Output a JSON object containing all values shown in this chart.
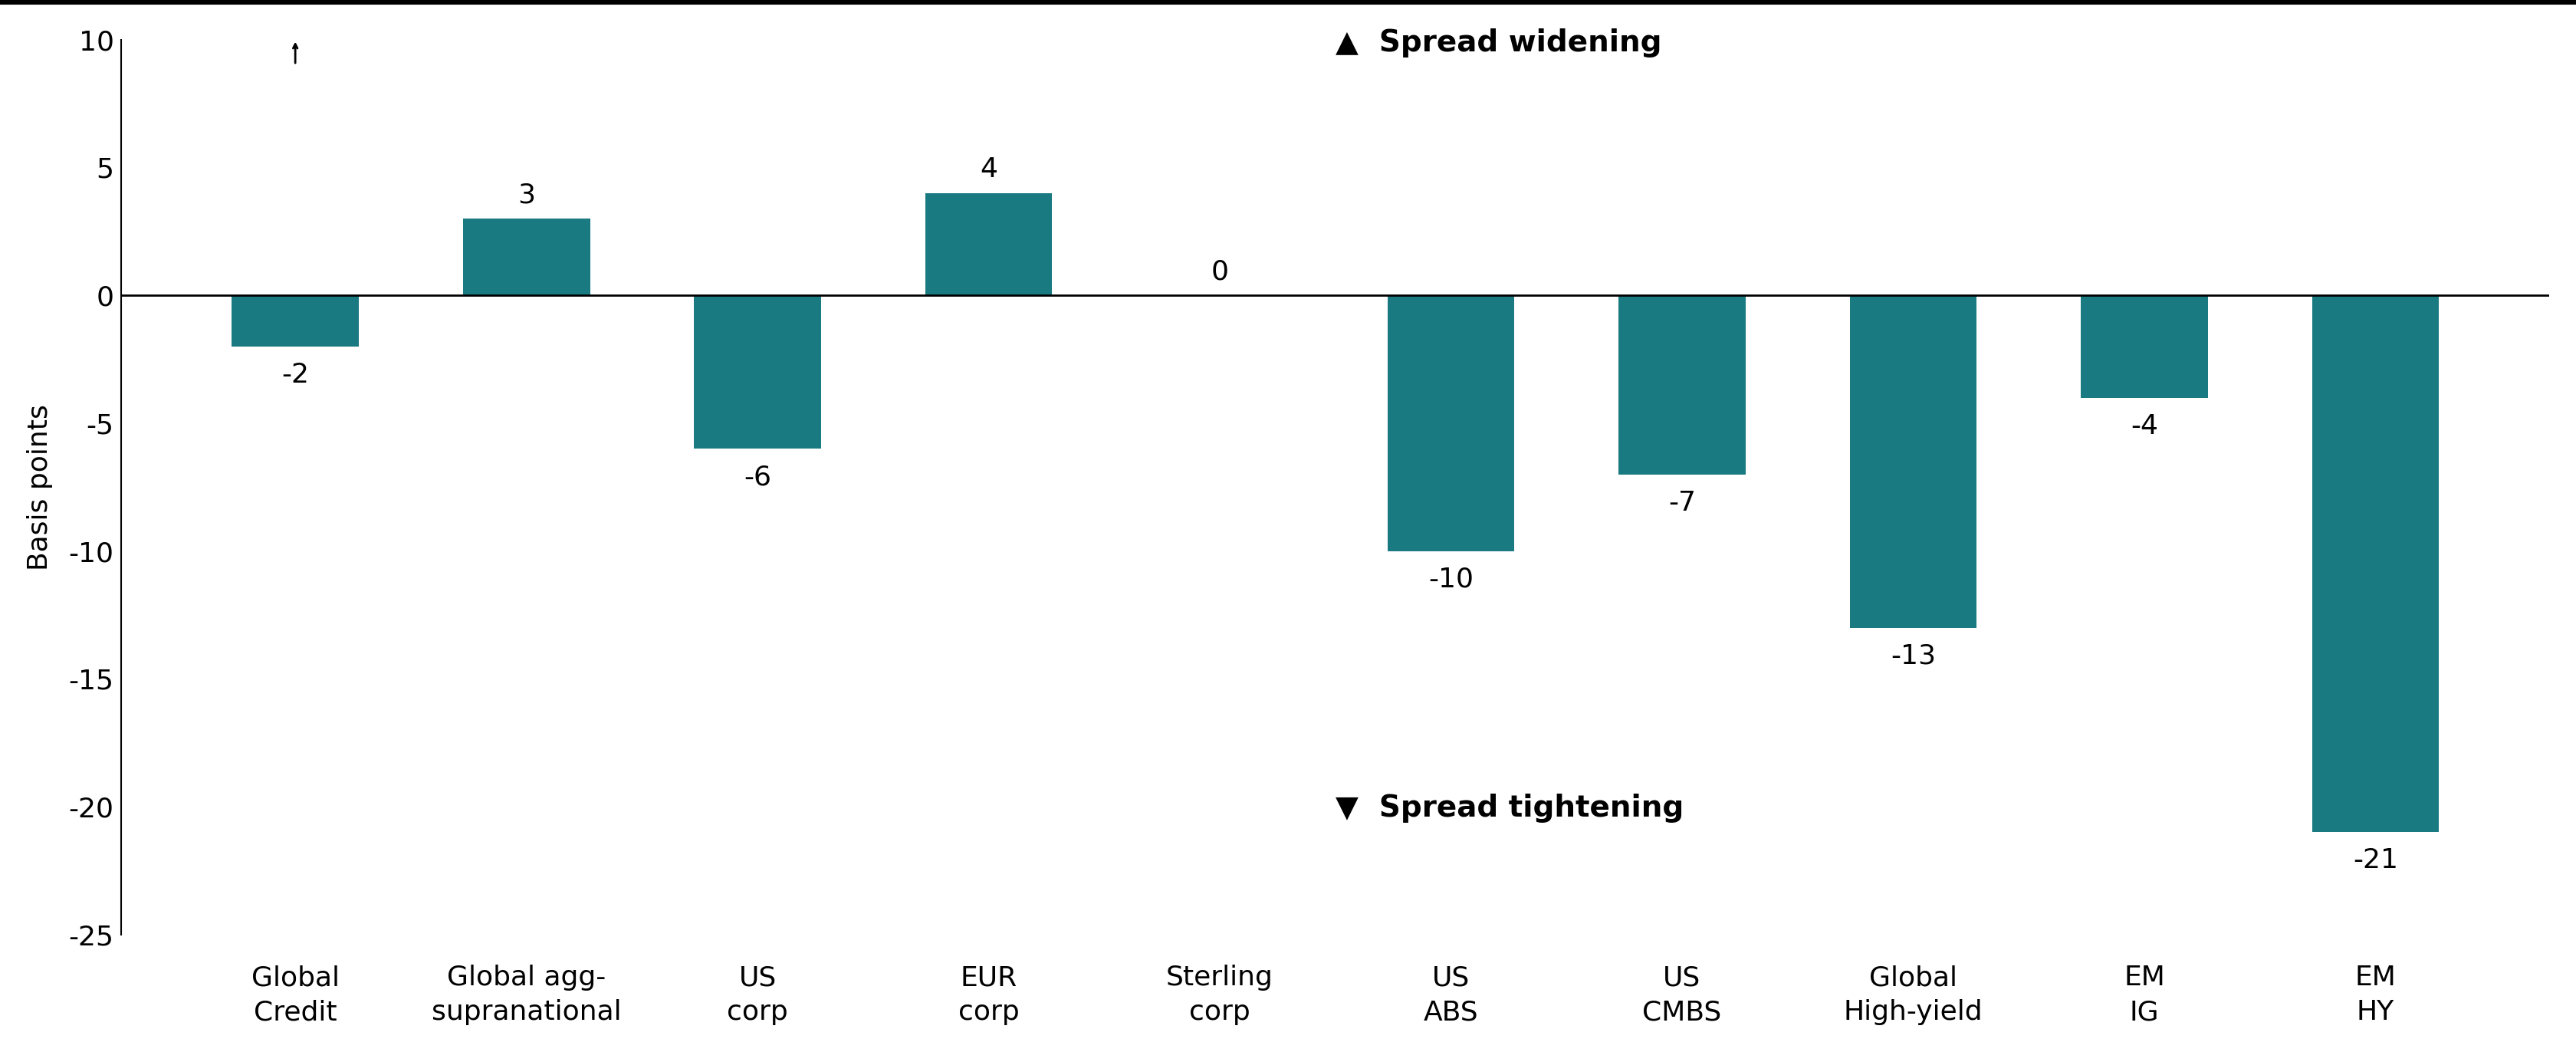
{
  "categories": [
    "Global\nCredit",
    "Global agg-\nsupranational",
    "US\ncorp",
    "EUR\ncorp",
    "Sterling\ncorp",
    "US\nABS",
    "US\nCMBS",
    "Global\nHigh-yield",
    "EM\nIG",
    "EM\nHY"
  ],
  "values": [
    -2,
    3,
    -6,
    4,
    0,
    -10,
    -7,
    -13,
    -4,
    -21
  ],
  "bar_color": "#1a7a82",
  "ylabel": "Basis points",
  "ylim": [
    -25,
    10
  ],
  "yticks": [
    -25,
    -20,
    -15,
    -10,
    -5,
    0,
    5,
    10
  ],
  "annotation_widening": "▲  Spread widening",
  "annotation_tightening": "▼  Spread tightening",
  "background_color": "#ffffff",
  "bar_width": 0.55,
  "label_fontsize": 26,
  "tick_fontsize": 26,
  "annotation_fontsize": 28,
  "ylabel_fontsize": 26
}
